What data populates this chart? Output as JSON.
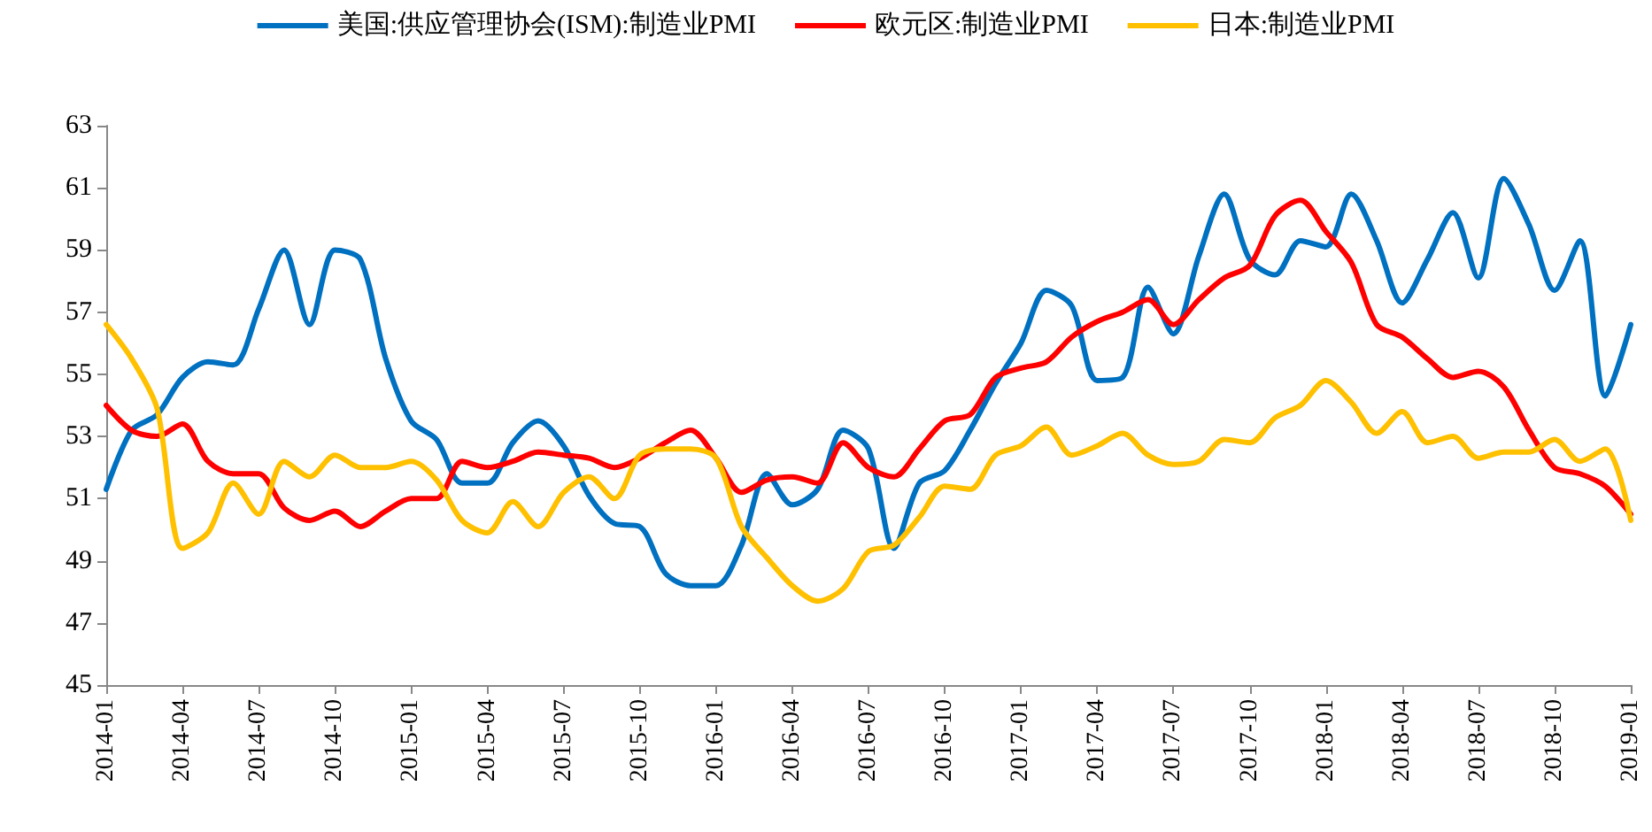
{
  "chart_data": {
    "type": "line",
    "legend": "top",
    "grid": false,
    "marker": "none",
    "line_style": "solid",
    "x": [
      "2014-01",
      "2014-02",
      "2014-03",
      "2014-04",
      "2014-05",
      "2014-06",
      "2014-07",
      "2014-08",
      "2014-09",
      "2014-10",
      "2014-11",
      "2014-12",
      "2015-01",
      "2015-02",
      "2015-03",
      "2015-04",
      "2015-05",
      "2015-06",
      "2015-07",
      "2015-08",
      "2015-09",
      "2015-10",
      "2015-11",
      "2015-12",
      "2016-01",
      "2016-02",
      "2016-03",
      "2016-04",
      "2016-05",
      "2016-06",
      "2016-07",
      "2016-08",
      "2016-09",
      "2016-10",
      "2016-11",
      "2016-12",
      "2017-01",
      "2017-02",
      "2017-03",
      "2017-04",
      "2017-05",
      "2017-06",
      "2017-07",
      "2017-08",
      "2017-09",
      "2017-10",
      "2017-11",
      "2017-12",
      "2018-01",
      "2018-02",
      "2018-03",
      "2018-04",
      "2018-05",
      "2018-06",
      "2018-07",
      "2018-08",
      "2018-09",
      "2018-10",
      "2018-11",
      "2018-12",
      "2019-01"
    ],
    "xlim": [
      "2014-01",
      "2019-01"
    ],
    "xticks": [
      "2014-01",
      "2014-04",
      "2014-07",
      "2014-10",
      "2015-01",
      "2015-04",
      "2015-07",
      "2015-10",
      "2016-01",
      "2016-04",
      "2016-07",
      "2016-10",
      "2017-01",
      "2017-04",
      "2017-07",
      "2017-10",
      "2018-01",
      "2018-04",
      "2018-07",
      "2018-10",
      "2019-01"
    ],
    "ylim": [
      45,
      63
    ],
    "yticks": [
      45,
      47,
      49,
      51,
      53,
      55,
      57,
      59,
      61,
      63
    ],
    "series": [
      {
        "name": "美国:供应管理协会(ISM):制造业PMI",
        "color": "#0070c0",
        "values": [
          51.3,
          53.2,
          53.7,
          54.9,
          55.4,
          55.3,
          57.1,
          59.0,
          56.6,
          59.0,
          58.7,
          55.5,
          53.5,
          52.9,
          51.5,
          51.5,
          52.8,
          53.5,
          52.7,
          51.1,
          50.2,
          50.1,
          48.6,
          48.2,
          48.2,
          49.5,
          51.8,
          50.8,
          51.3,
          53.2,
          52.6,
          49.4,
          51.5,
          51.9,
          53.2,
          54.7,
          56.0,
          57.7,
          57.2,
          54.8,
          54.9,
          57.8,
          56.3,
          58.8,
          60.8,
          58.7,
          58.2,
          59.3,
          59.1,
          60.8,
          59.3,
          57.3,
          58.7,
          60.2,
          58.1,
          61.3,
          59.8,
          57.7,
          59.3,
          54.3,
          56.6
        ]
      },
      {
        "name": "欧元区:制造业PMI",
        "color": "#ff0000",
        "values": [
          54.0,
          53.2,
          53.0,
          53.4,
          52.2,
          51.8,
          51.8,
          50.7,
          50.3,
          50.6,
          50.1,
          50.6,
          51.0,
          51.0,
          52.2,
          52.0,
          52.2,
          52.5,
          52.4,
          52.3,
          52.0,
          52.3,
          52.8,
          53.2,
          52.3,
          51.2,
          51.6,
          51.7,
          51.5,
          52.8,
          52.0,
          51.7,
          52.6,
          53.5,
          53.7,
          54.9,
          55.2,
          55.4,
          56.2,
          56.7,
          57.0,
          57.4,
          56.6,
          57.4,
          58.1,
          58.5,
          60.1,
          60.6,
          59.6,
          58.6,
          56.6,
          56.2,
          55.5,
          54.9,
          55.1,
          54.6,
          53.2,
          52.0,
          51.8,
          51.4,
          50.5
        ]
      },
      {
        "name": "日本:制造业PMI",
        "color": "#ffc000",
        "values": [
          56.6,
          55.5,
          53.9,
          49.4,
          49.9,
          51.5,
          50.5,
          52.2,
          51.7,
          52.4,
          52.0,
          52.0,
          52.2,
          51.6,
          50.3,
          49.9,
          50.9,
          50.1,
          51.2,
          51.7,
          51.0,
          52.4,
          52.6,
          52.6,
          52.3,
          50.1,
          49.1,
          48.2,
          47.7,
          48.1,
          49.3,
          49.5,
          50.4,
          51.4,
          51.3,
          52.4,
          52.7,
          53.3,
          52.4,
          52.7,
          53.1,
          52.4,
          52.1,
          52.2,
          52.9,
          52.8,
          53.6,
          54.0,
          54.8,
          54.1,
          53.1,
          53.8,
          52.8,
          53.0,
          52.3,
          52.5,
          52.5,
          52.9,
          52.2,
          52.6,
          50.3
        ]
      }
    ]
  }
}
